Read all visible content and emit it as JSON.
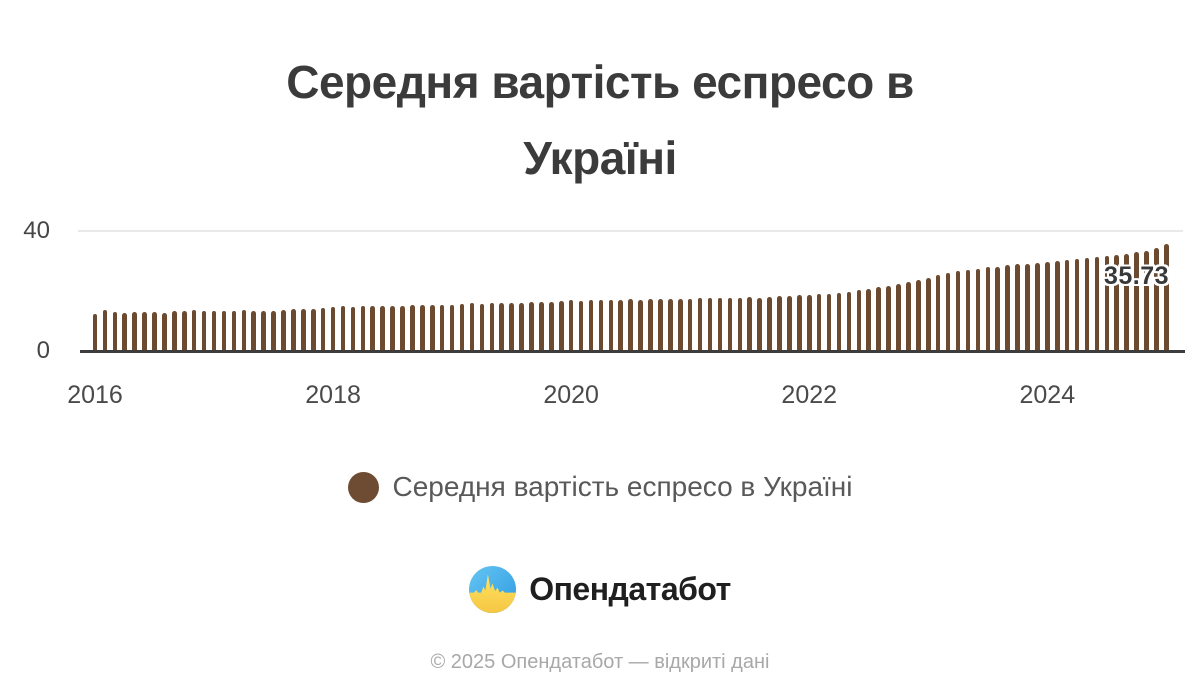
{
  "title": {
    "line1": "Середня вартість еспресо в",
    "line2": "Україні"
  },
  "colors": {
    "bar": "#6b4a30",
    "legend_dot": "#6d4c33",
    "axis_line": "#3d3d3d",
    "gridline": "#e9e9e9",
    "title_text": "#3b3b3b",
    "tick_text": "#4a4a4a",
    "last_value_text": "#383838",
    "legend_text": "#595959",
    "footer_text": "#a8a8a8",
    "logo_blue": "#38a8ea",
    "logo_yellow": "#ffd94d"
  },
  "chart_data": {
    "type": "bar",
    "title": "Середня вартість еспресо в Україні",
    "series_name": "Середня вартість еспресо в Україні",
    "frequency": "monthly",
    "xlabel": "",
    "ylabel": "",
    "ylim": [
      0,
      40
    ],
    "y_ticks": [
      0,
      40
    ],
    "x_ticks": [
      2016,
      2018,
      2020,
      2022,
      2024
    ],
    "grid": "single horizontal gridline at y=40",
    "legend_position": "bottom-center",
    "last_value_label": "35.73",
    "x": [
      "2016-01",
      "2016-02",
      "2016-03",
      "2016-04",
      "2016-05",
      "2016-06",
      "2016-07",
      "2016-08",
      "2016-09",
      "2016-10",
      "2016-11",
      "2016-12",
      "2017-01",
      "2017-02",
      "2017-03",
      "2017-04",
      "2017-05",
      "2017-06",
      "2017-07",
      "2017-08",
      "2017-09",
      "2017-10",
      "2017-11",
      "2017-12",
      "2018-01",
      "2018-02",
      "2018-03",
      "2018-04",
      "2018-05",
      "2018-06",
      "2018-07",
      "2018-08",
      "2018-09",
      "2018-10",
      "2018-11",
      "2018-12",
      "2019-01",
      "2019-02",
      "2019-03",
      "2019-04",
      "2019-05",
      "2019-06",
      "2019-07",
      "2019-08",
      "2019-09",
      "2019-10",
      "2019-11",
      "2019-12",
      "2020-01",
      "2020-02",
      "2020-03",
      "2020-04",
      "2020-05",
      "2020-06",
      "2020-07",
      "2020-08",
      "2020-09",
      "2020-10",
      "2020-11",
      "2020-12",
      "2021-01",
      "2021-02",
      "2021-03",
      "2021-04",
      "2021-05",
      "2021-06",
      "2021-07",
      "2021-08",
      "2021-09",
      "2021-10",
      "2021-11",
      "2021-12",
      "2022-01",
      "2022-02",
      "2022-03",
      "2022-04",
      "2022-05",
      "2022-06",
      "2022-07",
      "2022-08",
      "2022-09",
      "2022-10",
      "2022-11",
      "2022-12",
      "2023-01",
      "2023-02",
      "2023-03",
      "2023-04",
      "2023-05",
      "2023-06",
      "2023-07",
      "2023-08",
      "2023-09",
      "2023-10",
      "2023-11",
      "2023-12",
      "2024-01",
      "2024-02",
      "2024-03",
      "2024-04",
      "2024-05",
      "2024-06",
      "2024-07",
      "2024-08",
      "2024-09",
      "2024-10",
      "2024-11",
      "2024-12",
      "2025-01"
    ],
    "values": [
      12.5,
      13.8,
      13.1,
      12.9,
      13.1,
      13.0,
      13.0,
      12.8,
      13.3,
      13.6,
      13.9,
      13.6,
      13.5,
      13.3,
      13.6,
      13.7,
      13.5,
      13.4,
      13.6,
      13.9,
      14.1,
      14.0,
      14.2,
      14.4,
      14.8,
      15.0,
      14.9,
      15.1,
      15.0,
      15.2,
      15.1,
      15.2,
      15.3,
      15.5,
      15.4,
      15.6,
      15.5,
      15.8,
      16.0,
      15.9,
      16.1,
      16.0,
      16.2,
      16.1,
      16.3,
      16.5,
      16.4,
      16.6,
      17.2,
      16.8,
      17.1,
      17.0,
      17.2,
      17.1,
      17.3,
      17.2,
      17.4,
      17.3,
      17.5,
      17.4,
      17.5,
      17.7,
      17.6,
      17.8,
      17.7,
      17.9,
      18.0,
      17.9,
      18.1,
      18.3,
      18.4,
      18.6,
      18.8,
      19.0,
      19.2,
      19.5,
      19.9,
      20.3,
      20.8,
      21.3,
      21.9,
      22.5,
      23.1,
      23.7,
      24.5,
      25.3,
      26.0,
      26.6,
      27.1,
      27.5,
      27.9,
      28.2,
      28.6,
      28.9,
      29.2,
      29.5,
      29.8,
      30.1,
      30.4,
      30.7,
      31.0,
      31.3,
      31.6,
      32.0,
      32.4,
      32.9,
      33.5,
      34.4,
      35.73
    ]
  },
  "legend": {
    "label": "Середня вартість еспресо в Україні"
  },
  "logo": {
    "text": "Опендатабот",
    "icon": "opendatabot-pulse-icon"
  },
  "footer": {
    "text": "© 2025 Опендатабот — відкриті дані"
  }
}
